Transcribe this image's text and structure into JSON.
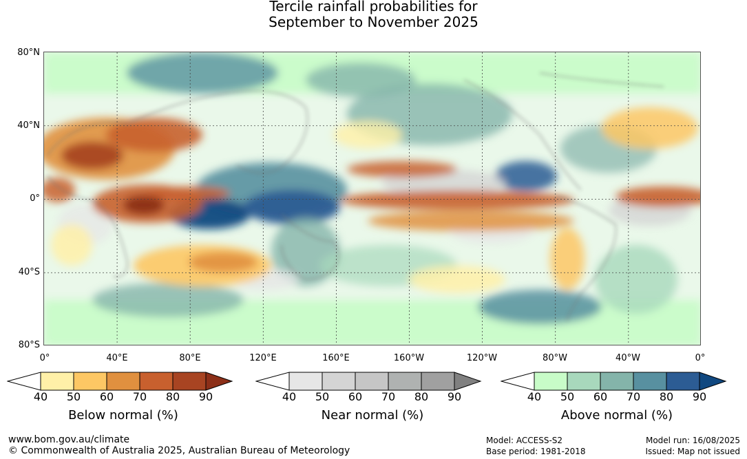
{
  "title": {
    "line1": "Tercile rainfall probabilities for",
    "line2": "September to November 2025"
  },
  "map": {
    "lat_labels": [
      "80°N",
      "40°N",
      "0°",
      "40°S",
      "80°S"
    ],
    "lon_labels": [
      "0°",
      "40°E",
      "80°E",
      "120°E",
      "160°E",
      "160°W",
      "120°W",
      "80°W",
      "40°W",
      "0°"
    ]
  },
  "colorbars": [
    {
      "id": "below",
      "title": "Below normal (%)",
      "ticks": [
        "40",
        "50",
        "60",
        "70",
        "80",
        "90"
      ],
      "colors": [
        "#ffffff",
        "#fff0a8",
        "#fdc764",
        "#e0903f",
        "#c8602e",
        "#a84422",
        "#8c2f18"
      ]
    },
    {
      "id": "near",
      "title": "Near normal (%)",
      "ticks": [
        "40",
        "50",
        "60",
        "70",
        "80",
        "90"
      ],
      "colors": [
        "#ffffff",
        "#e6e6e6",
        "#d4d4d4",
        "#c6c6c6",
        "#afb2b1",
        "#a0a0a0",
        "#808080"
      ]
    },
    {
      "id": "above",
      "title": "Above normal (%)",
      "ticks": [
        "40",
        "50",
        "60",
        "70",
        "80",
        "90"
      ],
      "colors": [
        "#ffffff",
        "#c8fcc8",
        "#a8d8bc",
        "#84b4aa",
        "#5890a0",
        "#2c5c94",
        "#104880"
      ]
    }
  ],
  "footer": {
    "url": "www.bom.gov.au/climate",
    "copyright": "© Commonwealth of Australia 2025, Australian Bureau of Meteorology",
    "model": "Model: ACCESS-S2",
    "base_period": "Base period: 1981-2018",
    "model_run": "Model run: 16/08/2025",
    "issued": "Issued: Map not issued"
  }
}
